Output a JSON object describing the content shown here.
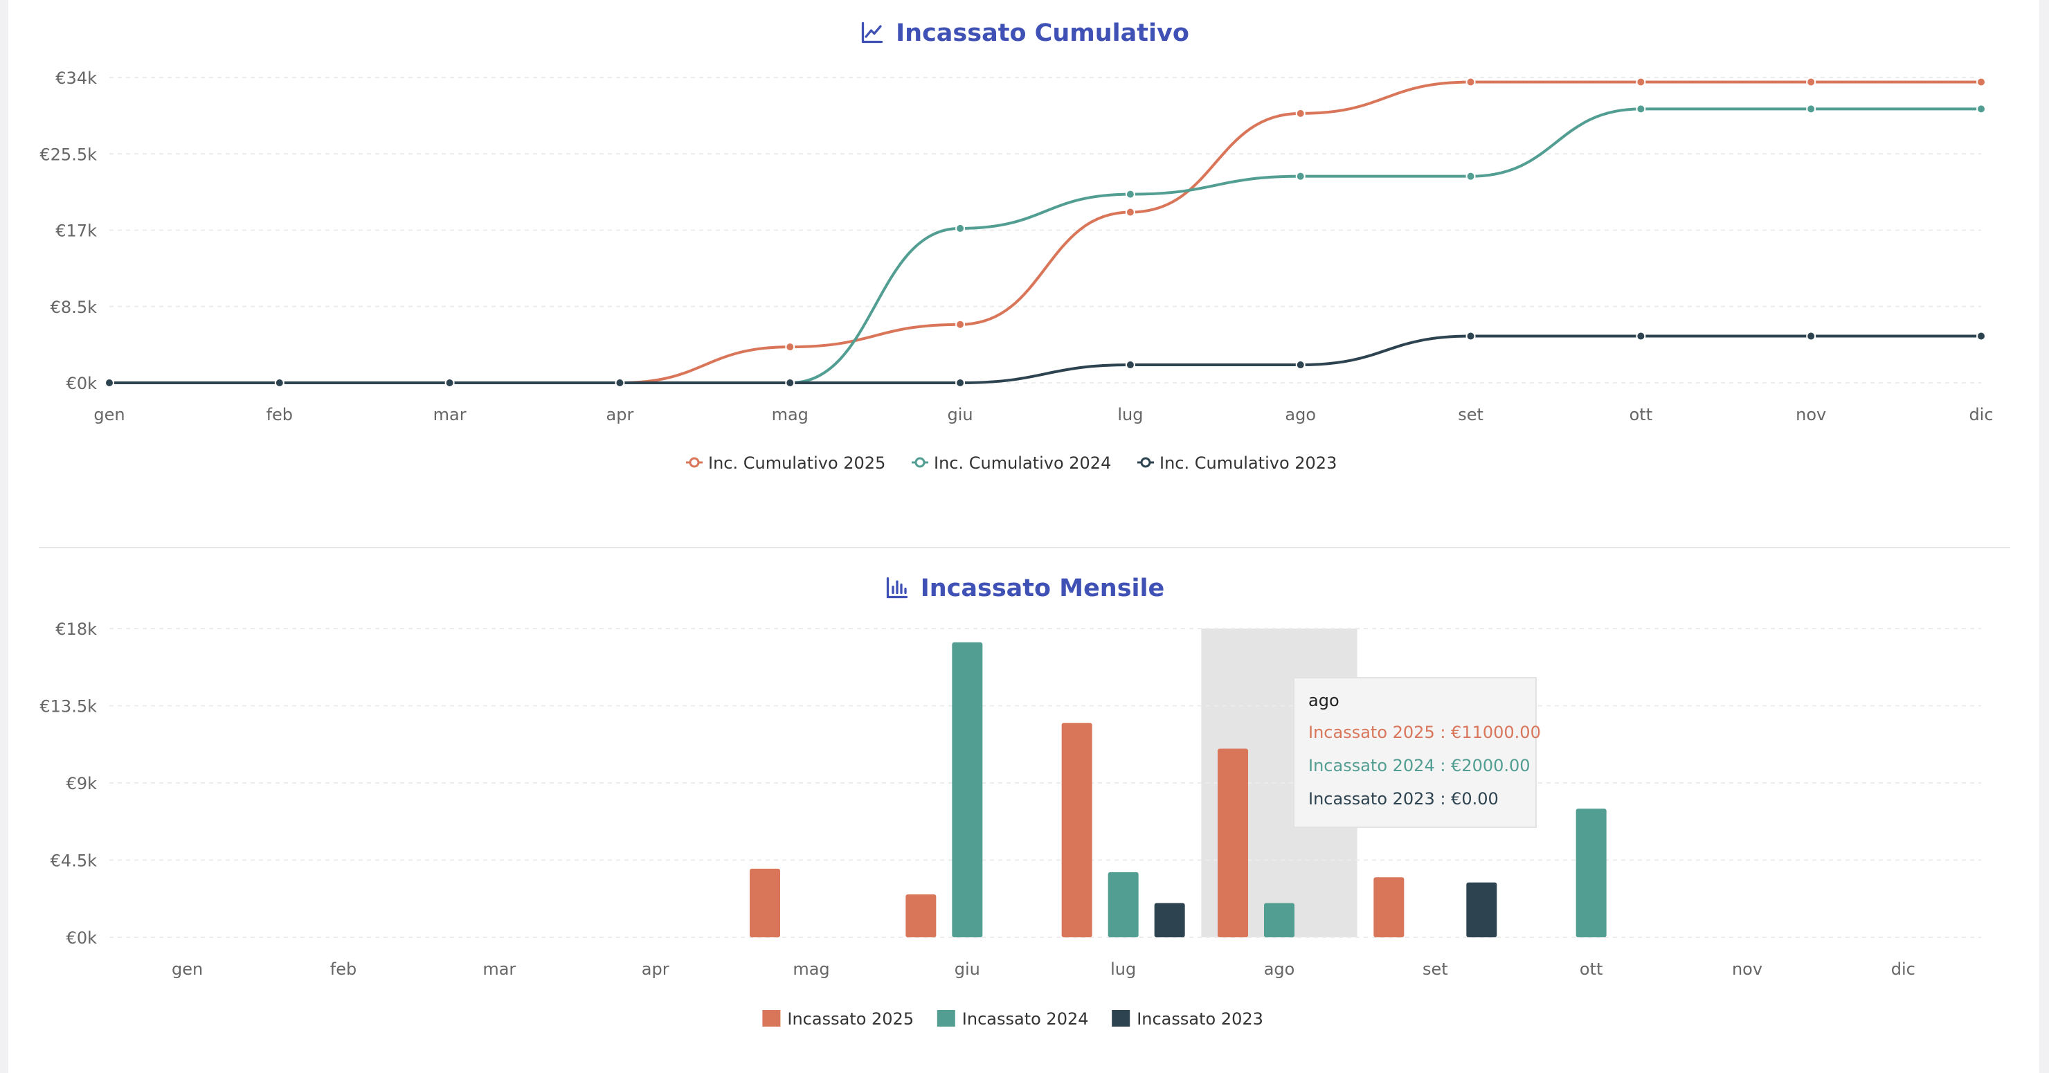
{
  "colors": {
    "c2025": "#d9765a",
    "c2024": "#529e92",
    "c2023": "#2e4350",
    "title": "#3f51b5",
    "axis_text": "#666666",
    "grid": "#ececec",
    "highlight": "#e4e4e4"
  },
  "charts": {
    "cumulative": {
      "title": "Incassato Cumulativo",
      "icon": "line-chart-icon"
    },
    "monthly": {
      "title": "Incassato Mensile",
      "icon": "bar-chart-icon"
    }
  },
  "tooltip": {
    "title": "ago",
    "rows": [
      {
        "text": "Incassato 2025 : €11000.00",
        "color": "#d9765a"
      },
      {
        "text": "Incassato 2024 : €2000.00",
        "color": "#529e92"
      },
      {
        "text": "Incassato 2023 : €0.00",
        "color": "#2e4350"
      }
    ]
  },
  "chart_data": [
    {
      "type": "line",
      "title": "Incassato Cumulativo",
      "categories": [
        "gen",
        "feb",
        "mar",
        "apr",
        "mag",
        "giu",
        "lug",
        "ago",
        "set",
        "ott",
        "nov",
        "dic"
      ],
      "ylim": [
        0,
        34000
      ],
      "yticks": [
        0,
        8500,
        17000,
        25500,
        34000
      ],
      "ytick_labels": [
        "€0k",
        "€8.5k",
        "€17k",
        "€25.5k",
        "€34k"
      ],
      "grid": true,
      "legend": "bottom",
      "series": [
        {
          "name": "Inc. Cumulativo 2025",
          "color": "#d9765a",
          "values": [
            0,
            0,
            0,
            0,
            4000,
            6500,
            19000,
            30000,
            33500,
            33500,
            33500,
            33500
          ]
        },
        {
          "name": "Inc. Cumulativo 2024",
          "color": "#529e92",
          "values": [
            0,
            0,
            0,
            0,
            0,
            17200,
            21000,
            23000,
            23000,
            30500,
            30500,
            30500
          ]
        },
        {
          "name": "Inc. Cumulativo 2023",
          "color": "#2e4350",
          "values": [
            0,
            0,
            0,
            0,
            0,
            0,
            2000,
            2000,
            5200,
            5200,
            5200,
            5200
          ]
        }
      ]
    },
    {
      "type": "bar",
      "title": "Incassato Mensile",
      "categories": [
        "gen",
        "feb",
        "mar",
        "apr",
        "mag",
        "giu",
        "lug",
        "ago",
        "set",
        "ott",
        "nov",
        "dic"
      ],
      "ylim": [
        0,
        18000
      ],
      "yticks": [
        0,
        4500,
        9000,
        13500,
        18000
      ],
      "ytick_labels": [
        "€0k",
        "€4.5k",
        "€9k",
        "€13.5k",
        "€18k"
      ],
      "grid": true,
      "legend": "bottom",
      "highlighted_category": "ago",
      "series": [
        {
          "name": "Incassato 2025",
          "color": "#d9765a",
          "values": [
            0,
            0,
            0,
            0,
            4000,
            2500,
            12500,
            11000,
            3500,
            0,
            0,
            0
          ]
        },
        {
          "name": "Incassato 2024",
          "color": "#529e92",
          "values": [
            0,
            0,
            0,
            0,
            0,
            17200,
            3800,
            2000,
            0,
            7500,
            0,
            0
          ]
        },
        {
          "name": "Incassato 2023",
          "color": "#2e4350",
          "values": [
            0,
            0,
            0,
            0,
            0,
            0,
            2000,
            0,
            3200,
            0,
            0,
            0
          ]
        }
      ]
    }
  ]
}
